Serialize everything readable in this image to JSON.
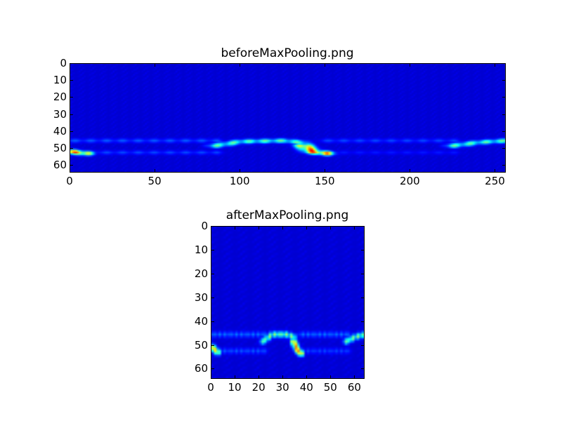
{
  "chart_data": [
    {
      "type": "heatmap",
      "title": "beforeMaxPooling.png",
      "colormap": "jet",
      "shape": [
        64,
        256
      ],
      "xlim": [
        0,
        256
      ],
      "ylim": [
        64,
        0
      ],
      "xticks": [
        0,
        50,
        100,
        150,
        200,
        250
      ],
      "yticks": [
        0,
        10,
        20,
        30,
        40,
        50,
        60
      ],
      "background_value": 0.08,
      "features": [
        {
          "x": [
            0,
            8
          ],
          "y": [
            51.5,
            52.5
          ],
          "peak": 0.85
        },
        {
          "x": [
            0,
            85
          ],
          "y": [
            45,
            45
          ],
          "peak": 0.22
        },
        {
          "x": [
            0,
            85
          ],
          "y": [
            52,
            52
          ],
          "peak": 0.2
        },
        {
          "x": [
            85,
            100,
            125,
            135
          ],
          "y": [
            48,
            45.5,
            45,
            46
          ],
          "peak": 0.5
        },
        {
          "x": [
            137,
            142,
            150
          ],
          "y": [
            48,
            51.5,
            52.5
          ],
          "peak": 0.9
        },
        {
          "x": [
            150,
            225
          ],
          "y": [
            45,
            45
          ],
          "peak": 0.2
        },
        {
          "x": [
            150,
            225
          ],
          "y": [
            52,
            52
          ],
          "peak": 0.15
        },
        {
          "x": [
            225,
            240,
            256
          ],
          "y": [
            48,
            46,
            45
          ],
          "peak": 0.5
        }
      ]
    },
    {
      "type": "heatmap",
      "title": "afterMaxPooling.png",
      "colormap": "jet",
      "shape": [
        64,
        64
      ],
      "xlim": [
        0,
        64
      ],
      "ylim": [
        64,
        0
      ],
      "xticks": [
        0,
        10,
        20,
        30,
        40,
        50,
        60
      ],
      "yticks": [
        0,
        10,
        20,
        30,
        40,
        50,
        60
      ],
      "background_value": 0.08,
      "features": [
        {
          "x": [
            0,
            2
          ],
          "y": [
            50.5,
            52.5
          ],
          "peak": 0.8
        },
        {
          "x": [
            0,
            22
          ],
          "y": [
            45,
            45
          ],
          "peak": 0.25
        },
        {
          "x": [
            0,
            22
          ],
          "y": [
            52,
            52
          ],
          "peak": 0.22
        },
        {
          "x": [
            21,
            25,
            31,
            34
          ],
          "y": [
            48,
            45,
            45,
            46
          ],
          "peak": 0.55
        },
        {
          "x": [
            34,
            35.5,
            37
          ],
          "y": [
            48,
            51.5,
            53
          ],
          "peak": 0.92
        },
        {
          "x": [
            37,
            57
          ],
          "y": [
            45,
            45
          ],
          "peak": 0.25
        },
        {
          "x": [
            37,
            57
          ],
          "y": [
            52,
            52
          ],
          "peak": 0.2
        },
        {
          "x": [
            56,
            60,
            64
          ],
          "y": [
            48,
            46,
            45
          ],
          "peak": 0.55
        }
      ]
    }
  ]
}
